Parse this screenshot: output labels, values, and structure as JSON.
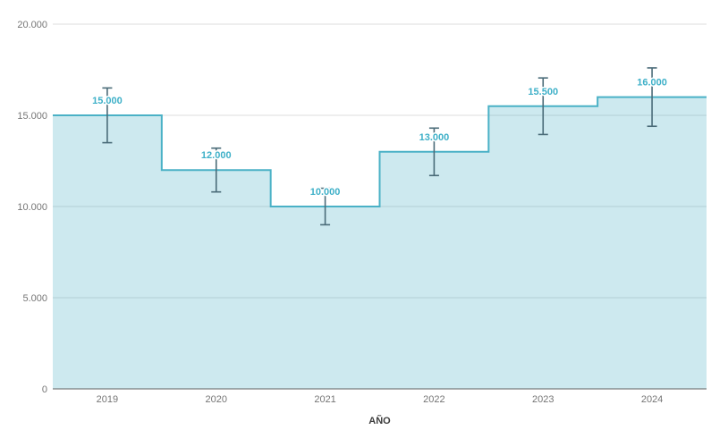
{
  "chart_data": {
    "type": "area",
    "subtype": "stepped-area",
    "title": "",
    "xlabel": "AÑO",
    "ylabel": "",
    "categories": [
      "2019",
      "2020",
      "2021",
      "2022",
      "2023",
      "2024"
    ],
    "values": [
      15000,
      12000,
      10000,
      13000,
      15500,
      16000
    ],
    "value_labels": [
      "15.000",
      "12.000",
      "10.000",
      "13.000",
      "15.500",
      "16.000"
    ],
    "error_bars": {
      "low": [
        13500,
        10800,
        9000,
        11700,
        13950,
        14400
      ],
      "high": [
        16500,
        13200,
        11000,
        14300,
        17050,
        17600
      ]
    },
    "ylim": [
      0,
      20000
    ],
    "y_ticks": [
      0,
      5000,
      10000,
      15000,
      20000
    ],
    "y_tick_labels": [
      "0",
      "5.000",
      "10.000",
      "15.000",
      "20.000"
    ],
    "grid": true,
    "legend_position": "none",
    "colors": {
      "area_line": "#4ab1c6",
      "area_fill_rgba": "rgba(74, 177, 198, 0.28)",
      "data_label": "#3eb0c8",
      "error_bar": "#4a6b78",
      "tick_text": "#757575",
      "axis_title": "#3c3c3c",
      "gridline": "#dcdcdc",
      "baseline": "#616161",
      "background": "#ffffff"
    }
  }
}
